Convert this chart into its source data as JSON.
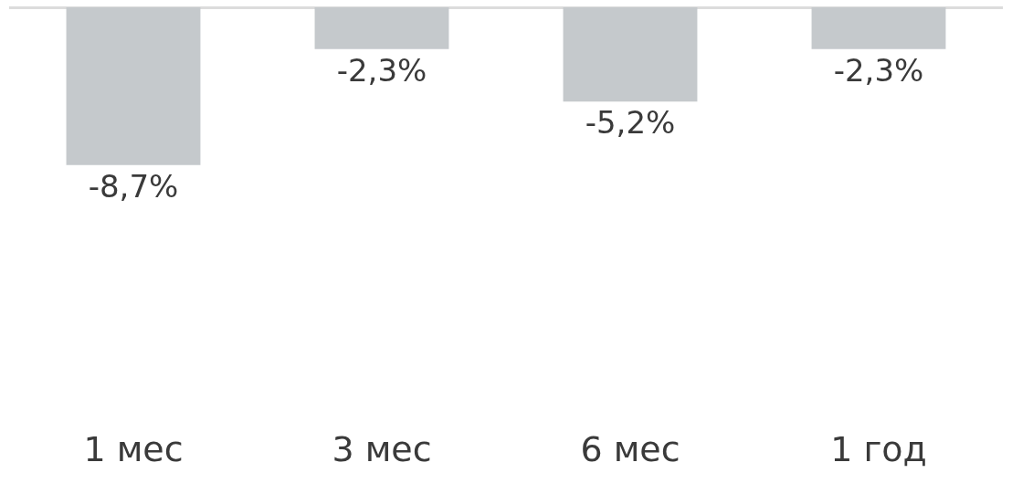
{
  "chart_data": {
    "type": "bar",
    "categories": [
      "1 мес",
      "3 мес",
      "6 мес",
      "1 год"
    ],
    "values": [
      -8.7,
      -2.3,
      -5.2,
      -2.3
    ],
    "value_labels": [
      "-8,7%",
      "-2,3%",
      "-5,2%",
      "-2,3%"
    ],
    "color": "#c5c9cc",
    "tick_labels": "x"
  }
}
